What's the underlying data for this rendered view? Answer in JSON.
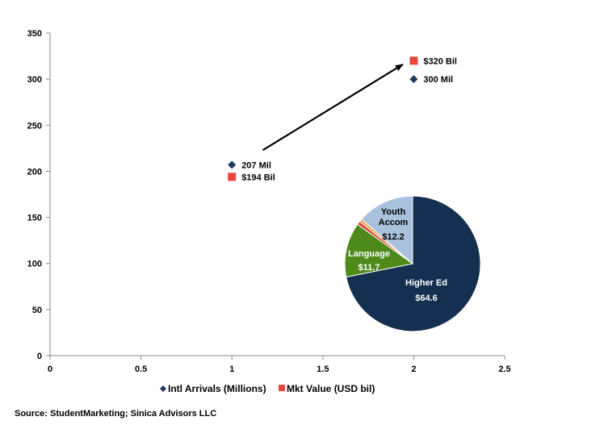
{
  "chart_data": {
    "type": "scatter",
    "xlim": [
      0,
      2.5
    ],
    "ylim": [
      0,
      350
    ],
    "x_ticks": [
      "0",
      "0.5",
      "1",
      "1.5",
      "2",
      "2.5"
    ],
    "y_ticks": [
      "0",
      "50",
      "100",
      "150",
      "200",
      "250",
      "300",
      "350"
    ],
    "grid": false,
    "legend_position": "bottom",
    "series": [
      {
        "name": "Intl Arrivals (Millions)",
        "marker": "diamond",
        "color": "#1f3b5c",
        "points": [
          {
            "x": 1,
            "y": 207,
            "label": "207 Mil"
          },
          {
            "x": 2,
            "y": 300,
            "label": "300 Mil"
          }
        ]
      },
      {
        "name": "Mkt Value (USD bil)",
        "marker": "square",
        "color": "#e8463c",
        "points": [
          {
            "x": 1,
            "y": 194,
            "label": "$194 Bil"
          },
          {
            "x": 2,
            "y": 320,
            "label": "$320 Bil"
          }
        ]
      }
    ],
    "arrow": {
      "from": [
        1.17,
        223
      ],
      "to": [
        1.94,
        316
      ]
    },
    "inset_pie": {
      "type": "pie",
      "slices": [
        {
          "label": "Higher Ed",
          "value": 64.6,
          "value_label": "$64.6",
          "color": "#142f4f",
          "text_color": "#ffffff"
        },
        {
          "label": "Language",
          "value": 11.7,
          "value_label": "$11.7",
          "color": "#4d8a1a",
          "text_color": "#ffffff"
        },
        {
          "label": "",
          "value": 0.8,
          "value_label": "",
          "color": "#d8453a",
          "text_color": "#ffffff"
        },
        {
          "label": "",
          "value": 0.6,
          "value_label": "",
          "color": "#e9a13b",
          "text_color": "#ffffff"
        },
        {
          "label": "Youth Accom",
          "value": 12.2,
          "value_label": "$12.2",
          "color": "#a9c1dd",
          "text_color": "#000000"
        }
      ]
    }
  },
  "source": "Source: StudentMarketing; Sinica Advisors LLC"
}
